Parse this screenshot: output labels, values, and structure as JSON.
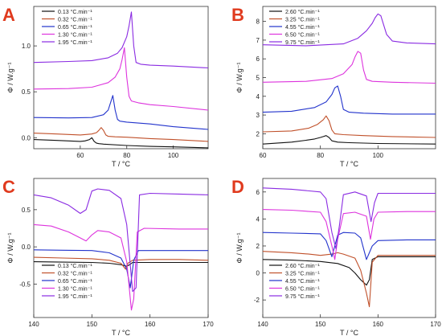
{
  "figure": {
    "xlabel_unit": "T  /  °C"
  },
  "chart_data": [
    {
      "panel": "A",
      "type": "line",
      "xlim": [
        40,
        115
      ],
      "ylim": [
        -0.12,
        1.43
      ],
      "xticks": [
        60,
        80,
        100
      ],
      "yticks": [
        0.0,
        0.5,
        1.0
      ],
      "xlabel": "T  /  °C",
      "ylabel": "Φ  /  W.g⁻¹",
      "legend_position": "top-left",
      "series": [
        {
          "name": "0.13 °C.min⁻¹",
          "color": "#111111",
          "x": [
            40,
            50,
            60,
            62,
            64,
            65,
            66,
            67,
            68,
            70,
            80,
            90,
            100,
            115
          ],
          "y": [
            -0.02,
            -0.03,
            -0.04,
            -0.035,
            -0.02,
            0.0,
            -0.04,
            -0.06,
            -0.065,
            -0.07,
            -0.085,
            -0.095,
            -0.1,
            -0.11
          ]
        },
        {
          "name": "0.32 °C.min⁻¹",
          "color": "#c0502a",
          "x": [
            40,
            50,
            60,
            65,
            67,
            68,
            69,
            70,
            71,
            72,
            75,
            80,
            90,
            100,
            115
          ],
          "y": [
            0.05,
            0.04,
            0.03,
            0.04,
            0.055,
            0.08,
            0.11,
            0.08,
            0.03,
            0.015,
            0.01,
            0.005,
            -0.01,
            -0.02,
            -0.04
          ]
        },
        {
          "name": "0.65 °C.min⁻¹",
          "color": "#2233cc",
          "x": [
            40,
            55,
            65,
            70,
            72,
            73,
            74,
            75,
            76,
            77,
            80,
            90,
            100,
            115
          ],
          "y": [
            0.22,
            0.215,
            0.22,
            0.25,
            0.3,
            0.38,
            0.46,
            0.3,
            0.2,
            0.18,
            0.17,
            0.15,
            0.12,
            0.09
          ]
        },
        {
          "name": "1.30 °C.min⁻¹",
          "color": "#dd33dd",
          "x": [
            40,
            55,
            65,
            72,
            75,
            77,
            78,
            79,
            80,
            81,
            82,
            85,
            90,
            100,
            115
          ],
          "y": [
            0.53,
            0.535,
            0.55,
            0.6,
            0.66,
            0.75,
            0.85,
            0.98,
            0.66,
            0.45,
            0.4,
            0.38,
            0.36,
            0.34,
            0.3
          ]
        },
        {
          "name": "1.95 °C.min⁻¹",
          "color": "#8a2be2",
          "x": [
            40,
            55,
            65,
            72,
            76,
            78,
            80,
            81,
            82,
            83,
            84,
            86,
            90,
            100,
            115
          ],
          "y": [
            0.82,
            0.83,
            0.84,
            0.87,
            0.92,
            0.98,
            1.1,
            1.22,
            1.37,
            1.0,
            0.82,
            0.8,
            0.79,
            0.78,
            0.76
          ]
        }
      ]
    },
    {
      "panel": "B",
      "type": "line",
      "xlim": [
        60,
        120
      ],
      "ylim": [
        1.2,
        8.8
      ],
      "xticks": [
        60,
        80,
        100
      ],
      "yticks": [
        2,
        3,
        4,
        5,
        6,
        7,
        8
      ],
      "xlabel": "T  /  °C",
      "ylabel": "Φ  /  W.g⁻¹",
      "legend_position": "top-left",
      "series": [
        {
          "name": "2.60 °C.min⁻¹",
          "color": "#111111",
          "x": [
            60,
            70,
            75,
            78,
            80,
            81,
            82,
            83,
            84,
            86,
            90,
            100,
            120
          ],
          "y": [
            1.45,
            1.55,
            1.65,
            1.72,
            1.8,
            1.85,
            1.9,
            1.8,
            1.62,
            1.55,
            1.52,
            1.48,
            1.45
          ]
        },
        {
          "name": "3.25 °C.min⁻¹",
          "color": "#c0502a",
          "x": [
            60,
            70,
            76,
            79,
            81,
            82,
            83,
            84,
            85,
            88,
            95,
            105,
            120
          ],
          "y": [
            2.1,
            2.15,
            2.3,
            2.5,
            2.75,
            2.95,
            2.7,
            2.2,
            2.0,
            1.95,
            1.9,
            1.85,
            1.8
          ]
        },
        {
          "name": "4.55 °C.min⁻¹",
          "color": "#2233cc",
          "x": [
            60,
            70,
            78,
            82,
            84,
            85,
            86,
            87,
            88,
            90,
            95,
            105,
            120
          ],
          "y": [
            3.15,
            3.2,
            3.4,
            3.7,
            4.1,
            4.45,
            4.55,
            4.0,
            3.3,
            3.15,
            3.1,
            3.05,
            3.05
          ]
        },
        {
          "name": "6.50 °C.min⁻¹",
          "color": "#dd33dd",
          "x": [
            60,
            75,
            84,
            88,
            91,
            92,
            93,
            94,
            95,
            96,
            98,
            105,
            120
          ],
          "y": [
            4.75,
            4.8,
            4.95,
            5.2,
            5.7,
            6.1,
            6.4,
            6.3,
            5.4,
            4.9,
            4.8,
            4.75,
            4.7
          ]
        },
        {
          "name": "9.75 °C.min⁻¹",
          "color": "#8a2be2",
          "x": [
            60,
            75,
            88,
            93,
            96,
            98,
            99,
            100,
            101,
            102,
            103,
            105,
            110,
            120
          ],
          "y": [
            6.75,
            6.7,
            6.8,
            7.1,
            7.5,
            7.9,
            8.2,
            8.4,
            8.3,
            7.8,
            7.3,
            6.95,
            6.85,
            6.8
          ]
        }
      ]
    },
    {
      "panel": "C",
      "type": "line",
      "xlim": [
        140,
        170
      ],
      "ylim": [
        -0.95,
        0.92
      ],
      "xticks": [
        140,
        150,
        160,
        170
      ],
      "yticks": [
        -0.5,
        0.0,
        0.5
      ],
      "xlabel": "T  /  °C",
      "ylabel": "Φ  /  W.g⁻¹",
      "legend_position": "bottom-left",
      "series": [
        {
          "name": "0.13 °C.min⁻¹",
          "color": "#111111",
          "x": [
            140,
            145,
            150,
            153,
            155,
            156,
            156.5,
            157,
            160,
            165,
            170
          ],
          "y": [
            -0.2,
            -0.205,
            -0.21,
            -0.22,
            -0.24,
            -0.26,
            -0.24,
            -0.21,
            -0.21,
            -0.21,
            -0.21
          ]
        },
        {
          "name": "0.32 °C.min⁻¹",
          "color": "#c0502a",
          "x": [
            140,
            145,
            150,
            153,
            155,
            155.8,
            156.2,
            157,
            160,
            165,
            170
          ],
          "y": [
            -0.14,
            -0.15,
            -0.16,
            -0.18,
            -0.22,
            -0.3,
            -0.22,
            -0.18,
            -0.17,
            -0.17,
            -0.18
          ]
        },
        {
          "name": "0.65 °C.min⁻¹",
          "color": "#2233cc",
          "x": [
            140,
            145,
            150,
            153,
            155,
            156,
            156.6,
            157.2,
            158,
            160,
            165,
            170
          ],
          "y": [
            -0.04,
            -0.045,
            -0.05,
            -0.08,
            -0.15,
            -0.3,
            -0.55,
            -0.18,
            -0.05,
            -0.05,
            -0.05,
            -0.05
          ]
        },
        {
          "name": "1.30 °C.min⁻¹",
          "color": "#dd33dd",
          "x": [
            140,
            143,
            146,
            148,
            149,
            150,
            151,
            153,
            155,
            156,
            156.8,
            157.2,
            157.8,
            159,
            165,
            170
          ],
          "y": [
            0.3,
            0.28,
            0.2,
            0.12,
            0.08,
            0.16,
            0.22,
            0.2,
            0.12,
            -0.2,
            -0.85,
            -0.7,
            0.2,
            0.25,
            0.24,
            0.24
          ]
        },
        {
          "name": "1.95 °C.min⁻¹",
          "color": "#8a2be2",
          "x": [
            140,
            143,
            146,
            148,
            149,
            150,
            151,
            153,
            155,
            156,
            157,
            157.6,
            158.2,
            160,
            165,
            170
          ],
          "y": [
            0.7,
            0.66,
            0.56,
            0.45,
            0.5,
            0.75,
            0.78,
            0.76,
            0.65,
            0.3,
            -0.6,
            -0.55,
            0.7,
            0.72,
            0.71,
            0.7
          ]
        }
      ]
    },
    {
      "panel": "D",
      "type": "line",
      "xlim": [
        140,
        170
      ],
      "ylim": [
        -3.3,
        7.0
      ],
      "xticks": [
        140,
        150,
        160,
        170
      ],
      "yticks": [
        -2,
        0,
        2,
        4,
        6
      ],
      "xlabel": "T  /  °C",
      "ylabel": "Φ  /  W.g⁻¹",
      "legend_position": "bottom-left",
      "series": [
        {
          "name": "2.60 °C.min⁻¹",
          "color": "#111111",
          "x": [
            140,
            145,
            150,
            153,
            155,
            156,
            157,
            158,
            158.5,
            159,
            160,
            165,
            170
          ],
          "y": [
            1.0,
            0.95,
            0.85,
            0.7,
            0.4,
            0.0,
            -0.5,
            -0.9,
            -0.5,
            1.0,
            1.2,
            1.2,
            1.2
          ]
        },
        {
          "name": "3.25 °C.min⁻¹",
          "color": "#c0502a",
          "x": [
            140,
            145,
            148,
            150,
            152,
            153,
            154,
            156,
            157,
            158,
            158.5,
            159,
            160,
            165,
            170
          ],
          "y": [
            1.6,
            1.5,
            1.4,
            1.3,
            1.4,
            1.5,
            1.4,
            1.1,
            0.2,
            -1.5,
            -2.5,
            0.8,
            1.3,
            1.3,
            1.3
          ]
        },
        {
          "name": "4.55 °C.min⁻¹",
          "color": "#2233cc",
          "x": [
            140,
            145,
            150,
            151,
            152,
            153,
            154,
            156,
            157,
            158,
            159,
            160,
            165,
            170
          ],
          "y": [
            3.0,
            2.95,
            2.9,
            2.4,
            1.2,
            2.8,
            3.0,
            2.95,
            2.6,
            1.0,
            2.0,
            2.4,
            2.45,
            2.45
          ]
        },
        {
          "name": "6.50 °C.min⁻¹",
          "color": "#dd33dd",
          "x": [
            140,
            145,
            150,
            151,
            152,
            152.5,
            153,
            154,
            156,
            158,
            158.7,
            159.3,
            160,
            165,
            170
          ],
          "y": [
            4.7,
            4.65,
            4.5,
            3.8,
            2.0,
            1.0,
            2.5,
            4.4,
            4.5,
            4.2,
            2.5,
            4.0,
            4.5,
            4.55,
            4.55
          ]
        },
        {
          "name": "9.75 °C.min⁻¹",
          "color": "#8a2be2",
          "x": [
            140,
            145,
            150,
            151,
            152,
            152.7,
            153.3,
            154,
            156,
            158,
            158.8,
            159.4,
            160,
            165,
            170
          ],
          "y": [
            6.3,
            6.2,
            6.0,
            5.5,
            3.0,
            1.8,
            3.5,
            5.8,
            6.0,
            5.7,
            3.8,
            5.2,
            5.9,
            5.9,
            5.9
          ]
        }
      ]
    }
  ]
}
